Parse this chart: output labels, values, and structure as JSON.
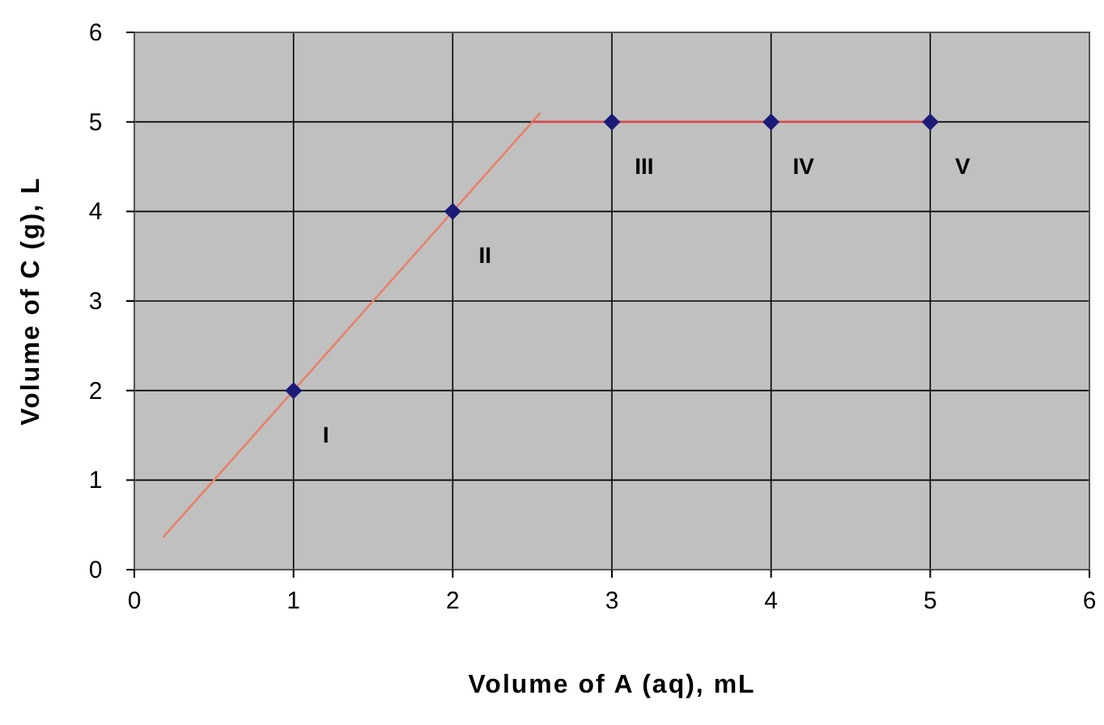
{
  "chart_data": {
    "type": "scatter",
    "xlabel": "Volume of A (aq), mL",
    "ylabel": "Volume of C (g),  L",
    "xlim": [
      0,
      6
    ],
    "ylim": [
      0,
      6
    ],
    "xticks": [
      0,
      1,
      2,
      3,
      4,
      5,
      6
    ],
    "yticks": [
      0,
      1,
      2,
      3,
      4,
      5,
      6
    ],
    "grid": true,
    "series": [
      {
        "type": "line",
        "color": "#e8806a",
        "x": [
          0.18,
          2.55
        ],
        "values": [
          0.36,
          5.1
        ],
        "marker": "none"
      },
      {
        "type": "line",
        "color": "#e05050",
        "x": [
          2.5,
          5
        ],
        "values": [
          5,
          5
        ],
        "marker": "none"
      },
      {
        "color": "#1c1c78",
        "x": [
          1,
          2,
          3,
          4,
          5
        ],
        "values": [
          2,
          4,
          5,
          5,
          5
        ],
        "marker": "diamond"
      }
    ],
    "annotations": [
      {
        "text": "I",
        "x": 1,
        "y": 2
      },
      {
        "text": "II",
        "x": 2,
        "y": 4
      },
      {
        "text": "III",
        "x": 3,
        "y": 5
      },
      {
        "text": "IV",
        "x": 4,
        "y": 5
      },
      {
        "text": "V",
        "x": 5,
        "y": 5
      }
    ]
  }
}
